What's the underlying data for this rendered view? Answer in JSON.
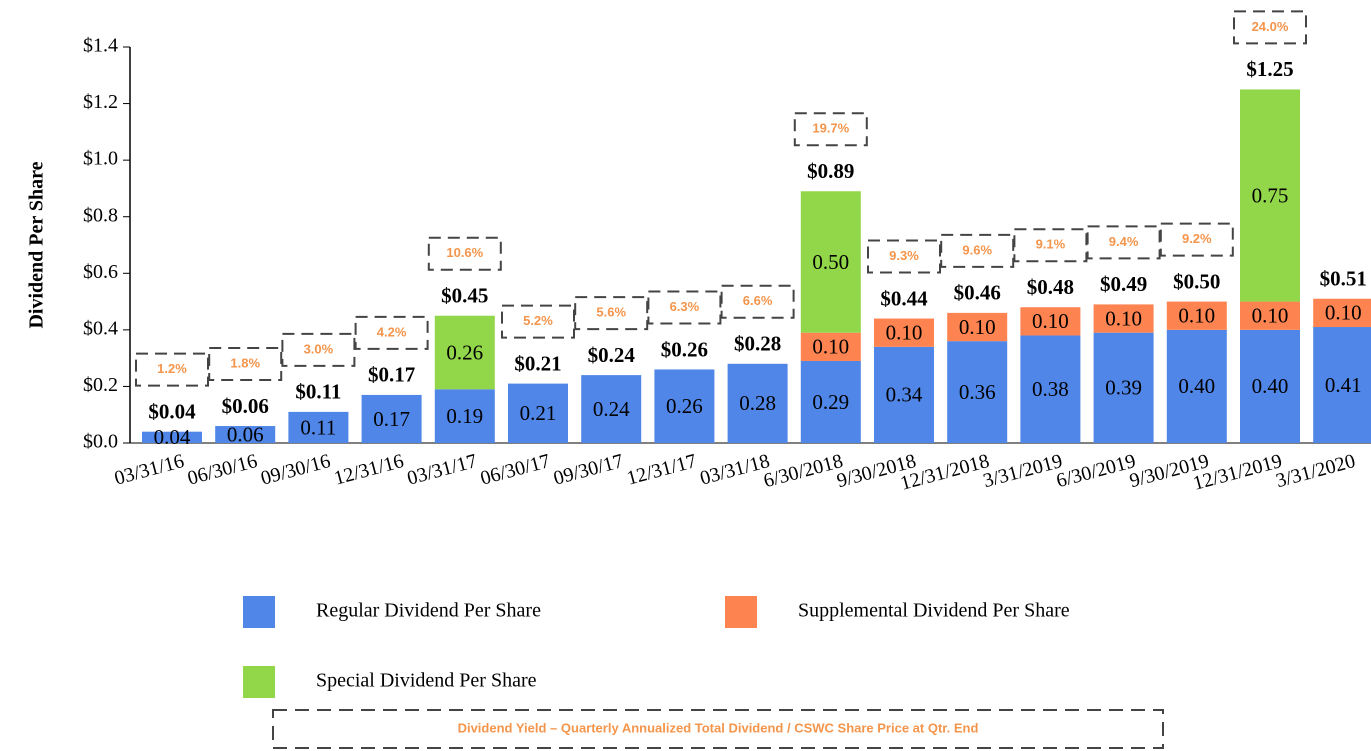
{
  "chart_data": {
    "type": "stacked_bar",
    "ylabel": "Dividend Per Share",
    "categories": [
      "03/31/16",
      "06/30/16",
      "09/30/16",
      "12/31/16",
      "03/31/17",
      "06/30/17",
      "09/30/17",
      "12/31/17",
      "03/31/18",
      "6/30/2018",
      "9/30/2018",
      "12/31/2018",
      "3/31/2019",
      "6/30/2019",
      "9/30/2019",
      "12/31/2019",
      "3/31/2020"
    ],
    "series": [
      {
        "name": "Regular Dividend Per Share",
        "color": "#4f86e8",
        "values": [
          0.04,
          0.06,
          0.11,
          0.17,
          0.19,
          0.21,
          0.24,
          0.26,
          0.28,
          0.29,
          0.34,
          0.36,
          0.38,
          0.39,
          0.4,
          0.4,
          0.41
        ],
        "value_labels": [
          "0.04",
          "0.06",
          "0.11",
          "0.17",
          "0.19",
          "0.21",
          "0.24",
          "0.26",
          "0.28",
          "0.29",
          "0.34",
          "0.36",
          "0.38",
          "0.39",
          "0.40",
          "0.40",
          "0.41"
        ]
      },
      {
        "name": "Supplemental Dividend Per Share",
        "color": "#fd8350",
        "values": [
          null,
          null,
          null,
          null,
          null,
          null,
          null,
          null,
          null,
          0.1,
          0.1,
          0.1,
          0.1,
          0.1,
          0.1,
          0.1,
          0.1
        ],
        "value_labels": [
          null,
          null,
          null,
          null,
          null,
          null,
          null,
          null,
          null,
          "0.10",
          "0.10",
          "0.10",
          "0.10",
          "0.10",
          "0.10",
          "0.10",
          "0.10"
        ]
      },
      {
        "name": "Special Dividend Per Share",
        "color": "#92d64a",
        "values": [
          null,
          null,
          null,
          null,
          0.26,
          null,
          null,
          null,
          null,
          0.5,
          null,
          null,
          null,
          null,
          null,
          0.75,
          null
        ],
        "value_labels": [
          null,
          null,
          null,
          null,
          "0.26",
          null,
          null,
          null,
          null,
          "0.50",
          null,
          null,
          null,
          null,
          null,
          "0.75",
          null
        ]
      }
    ],
    "total_labels": [
      "$0.04",
      "$0.06",
      "$0.11",
      "$0.17",
      "$0.45",
      "$0.21",
      "$0.24",
      "$0.26",
      "$0.28",
      "$0.89",
      "$0.44",
      "$0.46",
      "$0.48",
      "$0.49",
      "$0.50",
      "$1.25",
      "$0.51"
    ],
    "yield_labels": [
      "1.2%",
      "1.8%",
      "3.0%",
      "4.2%",
      "10.6%",
      "5.2%",
      "5.6%",
      "6.3%",
      "6.6%",
      "19.7%",
      "9.3%",
      "9.6%",
      "9.1%",
      "9.4%",
      "9.2%",
      "24.0%",
      null
    ],
    "footnote": "Dividend Yield – Quarterly Annualized Total Dividend / CSWC Share Price at Qtr. End",
    "ylim": [
      0,
      1.4
    ],
    "yticks": [
      {
        "value": 0,
        "label": "$0.0"
      },
      {
        "value": 0.2,
        "label": "$0.2"
      },
      {
        "value": 0.4,
        "label": "$0.4"
      },
      {
        "value": 0.6,
        "label": "$0.6"
      },
      {
        "value": 0.8,
        "label": "$0.8"
      },
      {
        "value": 1,
        "label": "$1.0"
      },
      {
        "value": 1.2,
        "label": "$1.2"
      },
      {
        "value": 1.4,
        "label": "$1.4"
      }
    ]
  }
}
